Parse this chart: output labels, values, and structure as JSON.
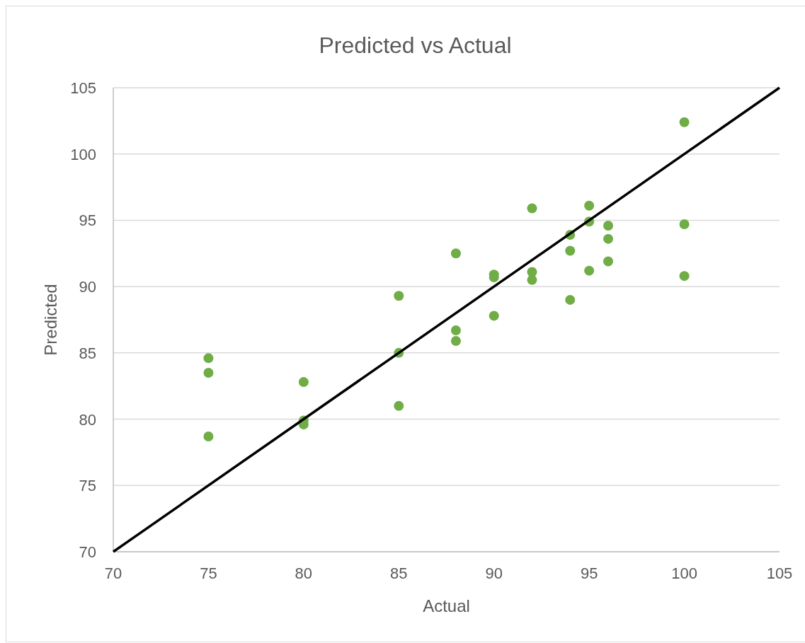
{
  "chart_data": {
    "type": "scatter",
    "title": "Predicted vs Actual",
    "xlabel": "Actual",
    "ylabel": "Predicted",
    "xlim": [
      70,
      105
    ],
    "xticks": [
      70,
      75,
      80,
      85,
      90,
      95,
      100,
      105
    ],
    "ylim": [
      70,
      105
    ],
    "yticks": [
      70,
      75,
      80,
      85,
      90,
      95,
      100,
      105
    ],
    "grid": "y",
    "marker": "circle",
    "series": [
      {
        "color": "#70ad47",
        "x": [
          75,
          75,
          75,
          80,
          80,
          80,
          85,
          85,
          85,
          88,
          88,
          88,
          90,
          90,
          90,
          92,
          92,
          92,
          94,
          94,
          94,
          95,
          95,
          95,
          96,
          96,
          96,
          100,
          100,
          100
        ],
        "values": [
          78.7,
          83.5,
          84.6,
          82.8,
          79.9,
          79.6,
          81.0,
          85.0,
          89.3,
          86.7,
          85.9,
          92.5,
          90.9,
          90.7,
          87.8,
          95.9,
          91.1,
          90.5,
          93.9,
          92.7,
          89.0,
          96.1,
          94.9,
          91.2,
          94.6,
          93.6,
          91.9,
          102.4,
          94.7,
          90.8
        ]
      },
      {
        "type": "line",
        "color": "#000000",
        "x": [
          70,
          105
        ],
        "values": [
          70,
          105
        ],
        "marker": "none"
      }
    ]
  }
}
